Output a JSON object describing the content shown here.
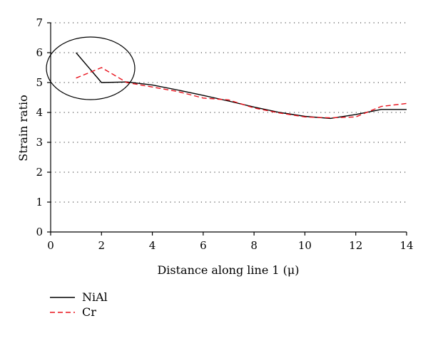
{
  "chart_data": {
    "type": "line",
    "xlabel": "Distance along line 1 (μ)",
    "ylabel": "Strain ratio",
    "xlim": [
      0,
      14
    ],
    "ylim": [
      0,
      7
    ],
    "x_ticks": [
      0,
      2,
      4,
      6,
      8,
      10,
      12,
      14
    ],
    "y_ticks": [
      0,
      1,
      2,
      3,
      4,
      5,
      6,
      7
    ],
    "grid": "horizontal dotted",
    "legend_position": "bottom-left",
    "annotation": "ellipse around x≈1–3 highlighting initial region",
    "series": [
      {
        "name": "NiAl",
        "color": "#000000",
        "style": "solid",
        "x": [
          1,
          2,
          3,
          4,
          5,
          6,
          7,
          8,
          9,
          10,
          11,
          12,
          13,
          14
        ],
        "y": [
          6.0,
          5.0,
          5.02,
          4.92,
          4.75,
          4.57,
          4.38,
          4.18,
          4.0,
          3.87,
          3.8,
          3.93,
          4.1,
          4.1
        ]
      },
      {
        "name": "Cr",
        "color": "#e8101a",
        "style": "dashed",
        "x": [
          1,
          2,
          3,
          4,
          5,
          6,
          7,
          8,
          9,
          10,
          11,
          12,
          13,
          14
        ],
        "y": [
          5.15,
          5.5,
          5.0,
          4.85,
          4.7,
          4.48,
          4.42,
          4.15,
          3.98,
          3.85,
          3.82,
          3.85,
          4.2,
          4.3
        ]
      }
    ]
  }
}
